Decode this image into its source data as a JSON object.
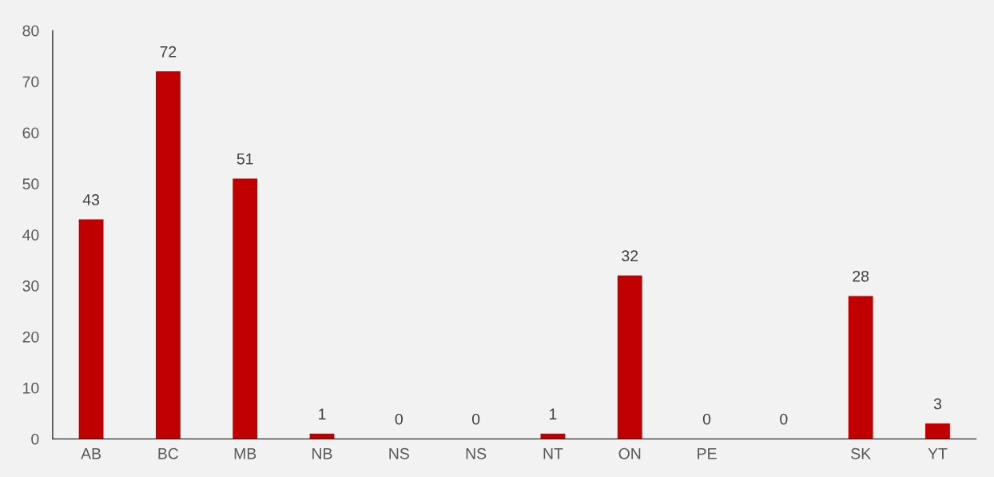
{
  "chart_data": {
    "type": "bar",
    "categories": [
      "AB",
      "BC",
      "MB",
      "NB",
      "NS",
      "NS",
      "NT",
      "ON",
      "PE",
      null,
      "SK",
      "YT"
    ],
    "values": [
      43,
      72,
      51,
      1,
      0,
      0,
      1,
      32,
      0,
      0,
      28,
      3
    ],
    "color": "#c00000",
    "ylim": [
      0,
      80
    ],
    "yticks": [
      0,
      10,
      20,
      30,
      40,
      50,
      60,
      70,
      80
    ],
    "grid": false,
    "data_labels": true
  }
}
